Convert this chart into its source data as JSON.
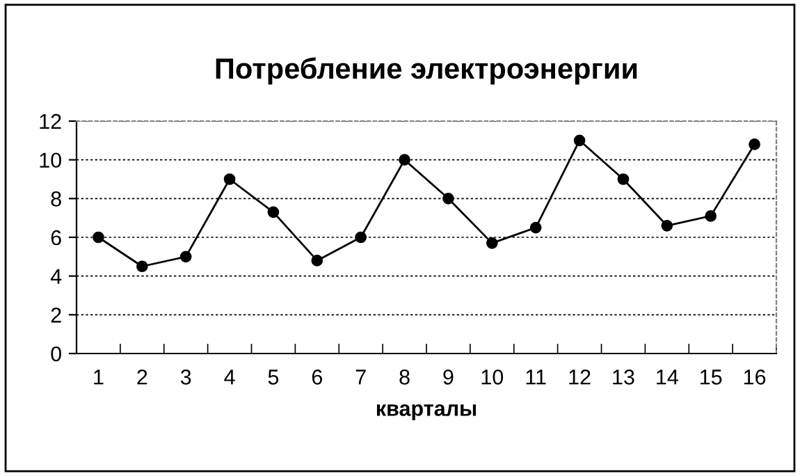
{
  "chart_data": {
    "type": "line",
    "title": "Потребление электроэнергии",
    "xlabel": "кварталы",
    "categories": [
      "1",
      "2",
      "3",
      "4",
      "5",
      "6",
      "7",
      "8",
      "9",
      "10",
      "11",
      "12",
      "13",
      "14",
      "15",
      "16"
    ],
    "series": [
      {
        "color": "#000000",
        "values": [
          6,
          4.5,
          5,
          9,
          7.3,
          4.8,
          6,
          10,
          8,
          5.7,
          6.5,
          11,
          9,
          6.6,
          7.1,
          10.8
        ]
      }
    ],
    "ylim": [
      0,
      12
    ],
    "yticks": [
      0,
      2,
      4,
      6,
      8,
      10,
      12
    ],
    "grid": "y",
    "marker": "circle",
    "line_style": "solid",
    "legend": false
  }
}
